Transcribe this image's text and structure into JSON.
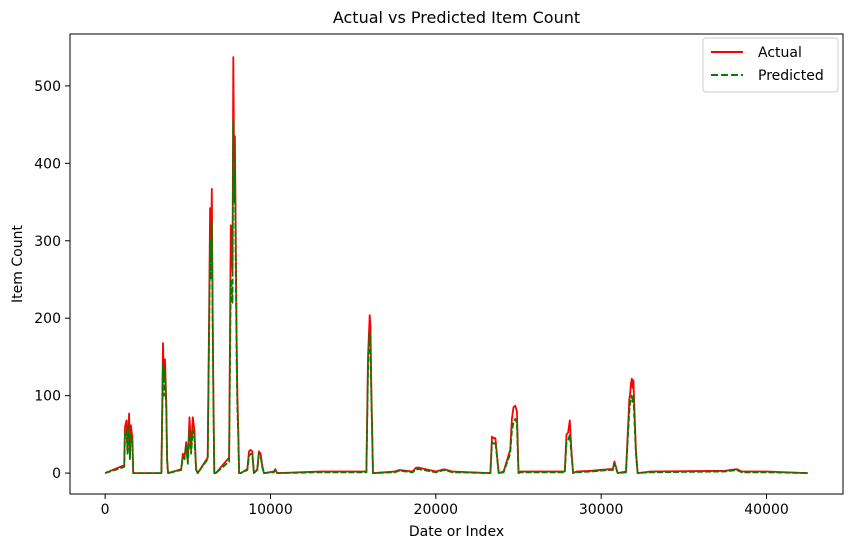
{
  "chart_data": {
    "type": "line",
    "title": "Actual vs Predicted Item Count",
    "xlabel": "Date or Index",
    "ylabel": "Item Count",
    "xlim": [
      -2125,
      44625
    ],
    "ylim": [
      -27,
      567
    ],
    "x_ticks": [
      0,
      10000,
      20000,
      30000,
      40000
    ],
    "x_tick_labels": [
      "0",
      "10000",
      "20000",
      "30000",
      "40000"
    ],
    "y_ticks": [
      0,
      100,
      200,
      300,
      400,
      500
    ],
    "y_tick_labels": [
      "0",
      "100",
      "200",
      "300",
      "400",
      "500"
    ],
    "grid": false,
    "legend_position": "upper right",
    "series": [
      {
        "name": "Actual",
        "color": "#ff0000",
        "style": "solid",
        "x": [
          0,
          900,
          1150,
          1200,
          1300,
          1350,
          1450,
          1500,
          1550,
          1650,
          1700,
          2000,
          3400,
          3500,
          3560,
          3620,
          3700,
          3750,
          3800,
          4600,
          4700,
          4800,
          4900,
          5000,
          5100,
          5200,
          5300,
          5400,
          5500,
          5600,
          6200,
          6300,
          6350,
          6400,
          6450,
          6500,
          6550,
          6600,
          6700,
          7500,
          7600,
          7650,
          7700,
          7750,
          7800,
          7850,
          7900,
          7950,
          8000,
          8050,
          8100,
          8200,
          8600,
          8700,
          8800,
          8900,
          9000,
          9200,
          9300,
          9400,
          9500,
          9600,
          10200,
          10300,
          10400,
          13000,
          15800,
          15900,
          16000,
          16050,
          16100,
          16200,
          17500,
          17800,
          18600,
          18800,
          19000,
          20000,
          20500,
          21000,
          23300,
          23400,
          23500,
          23600,
          23800,
          24100,
          24500,
          24600,
          24700,
          24800,
          24900,
          25000,
          25100,
          27800,
          27900,
          28000,
          28100,
          28200,
          28300,
          28500,
          29400,
          30500,
          30700,
          30800,
          31000,
          31500,
          31700,
          31750,
          31800,
          31850,
          31900,
          31950,
          32000,
          32100,
          32200,
          33000,
          37500,
          37800,
          38200,
          38500,
          40000,
          42500
        ],
        "y": [
          0,
          8,
          10,
          60,
          68,
          30,
          77,
          20,
          62,
          45,
          0,
          0,
          0,
          168,
          120,
          147,
          90,
          20,
          0,
          5,
          25,
          20,
          40,
          15,
          72,
          30,
          72,
          55,
          5,
          0,
          20,
          230,
          342,
          280,
          367,
          220,
          100,
          0,
          0,
          20,
          320,
          300,
          260,
          537,
          400,
          435,
          300,
          180,
          100,
          60,
          0,
          0,
          5,
          28,
          30,
          28,
          0,
          5,
          28,
          25,
          10,
          0,
          2,
          5,
          0,
          2,
          2,
          150,
          204,
          190,
          110,
          0,
          2,
          4,
          2,
          7,
          7,
          2,
          5,
          2,
          0,
          47,
          45,
          45,
          0,
          2,
          30,
          70,
          85,
          87,
          80,
          0,
          2,
          2,
          50,
          52,
          68,
          30,
          0,
          2,
          3,
          5,
          5,
          15,
          0,
          2,
          95,
          102,
          115,
          122,
          110,
          120,
          90,
          30,
          0,
          2,
          3,
          4,
          5,
          2,
          2,
          0
        ]
      },
      {
        "name": "Predicted",
        "color": "#008000",
        "style": "dashed",
        "x": [
          0,
          900,
          1150,
          1200,
          1300,
          1350,
          1450,
          1500,
          1550,
          1650,
          1700,
          2000,
          3400,
          3500,
          3560,
          3620,
          3700,
          3750,
          3800,
          4600,
          4700,
          4800,
          4900,
          5000,
          5100,
          5200,
          5300,
          5400,
          5500,
          5600,
          6200,
          6300,
          6350,
          6400,
          6450,
          6500,
          6550,
          6600,
          6700,
          7500,
          7600,
          7650,
          7700,
          7750,
          7800,
          7850,
          7900,
          7950,
          8000,
          8050,
          8100,
          8200,
          8600,
          8700,
          8800,
          8900,
          9000,
          9200,
          9300,
          9400,
          9500,
          9600,
          10200,
          10300,
          10400,
          13000,
          15800,
          15900,
          16000,
          16050,
          16100,
          16200,
          17500,
          17800,
          18600,
          18800,
          19000,
          20000,
          20500,
          21000,
          23300,
          23400,
          23500,
          23600,
          23800,
          24100,
          24500,
          24600,
          24700,
          24800,
          24900,
          25000,
          25100,
          27800,
          27900,
          28000,
          28100,
          28200,
          28300,
          28500,
          29400,
          30500,
          30700,
          30800,
          31000,
          31500,
          31700,
          31750,
          31800,
          31850,
          31900,
          31950,
          32000,
          32100,
          32200,
          33000,
          37500,
          37800,
          38200,
          38500,
          40000,
          42500
        ],
        "y": [
          0,
          6,
          8,
          50,
          55,
          25,
          60,
          18,
          50,
          40,
          0,
          0,
          0,
          140,
          100,
          135,
          80,
          15,
          0,
          4,
          20,
          18,
          35,
          12,
          55,
          25,
          55,
          45,
          4,
          0,
          18,
          200,
          300,
          250,
          325,
          200,
          90,
          0,
          0,
          15,
          250,
          240,
          220,
          455,
          350,
          390,
          260,
          150,
          80,
          50,
          0,
          0,
          4,
          22,
          25,
          24,
          0,
          4,
          24,
          22,
          8,
          0,
          1,
          4,
          0,
          1,
          1,
          130,
          182,
          170,
          100,
          0,
          1,
          3,
          1,
          5,
          5,
          1,
          4,
          1,
          0,
          40,
          38,
          40,
          0,
          1,
          25,
          55,
          65,
          70,
          65,
          0,
          1,
          1,
          40,
          42,
          50,
          25,
          0,
          1,
          2,
          4,
          4,
          12,
          0,
          1,
          80,
          90,
          95,
          100,
          92,
          100,
          75,
          25,
          0,
          1,
          2,
          3,
          4,
          1,
          1,
          0
        ]
      }
    ]
  }
}
